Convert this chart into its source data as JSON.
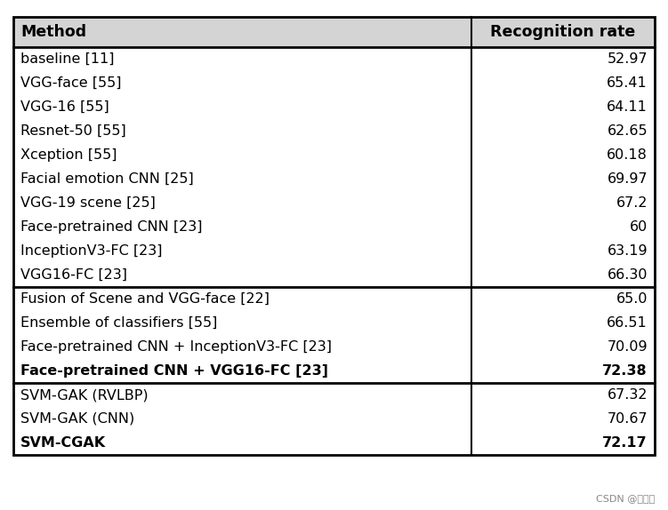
{
  "header": [
    "Method",
    "Recognition rate"
  ],
  "group1": [
    [
      "baseline [11]",
      "52.97"
    ],
    [
      "VGG-face [55]",
      "65.41"
    ],
    [
      "VGG-16 [55]",
      "64.11"
    ],
    [
      "Resnet-50 [55]",
      "62.65"
    ],
    [
      "Xception [55]",
      "60.18"
    ],
    [
      "Facial emotion CNN [25]",
      "69.97"
    ],
    [
      "VGG-19 scene [25]",
      "67.2"
    ],
    [
      "Face-pretrained CNN [23]",
      "60"
    ],
    [
      "InceptionV3-FC [23]",
      "63.19"
    ],
    [
      "VGG16-FC [23]",
      "66.30"
    ]
  ],
  "group2": [
    [
      "Fusion of Scene and VGG-face [22]",
      "65.0"
    ],
    [
      "Ensemble of classifiers [55]",
      "66.51"
    ],
    [
      "Face-pretrained CNN + InceptionV3-FC [23]",
      "70.09"
    ],
    [
      "Face-pretrained CNN + VGG16-FC [23]",
      "72.38"
    ]
  ],
  "group2_bold": [
    false,
    false,
    false,
    true
  ],
  "group3": [
    [
      "SVM-GAK (RVLBP)",
      "67.32"
    ],
    [
      "SVM-GAK (CNN)",
      "70.67"
    ],
    [
      "SVM-CGAK",
      "72.17"
    ]
  ],
  "group3_bold": [
    false,
    false,
    true
  ],
  "bg_color": "#ffffff",
  "header_bg": "#d4d4d4",
  "border_color": "#000000",
  "text_color": "#000000",
  "font_size": 11.5,
  "header_font_size": 12.5,
  "watermark": "CSDN @小玄猫"
}
